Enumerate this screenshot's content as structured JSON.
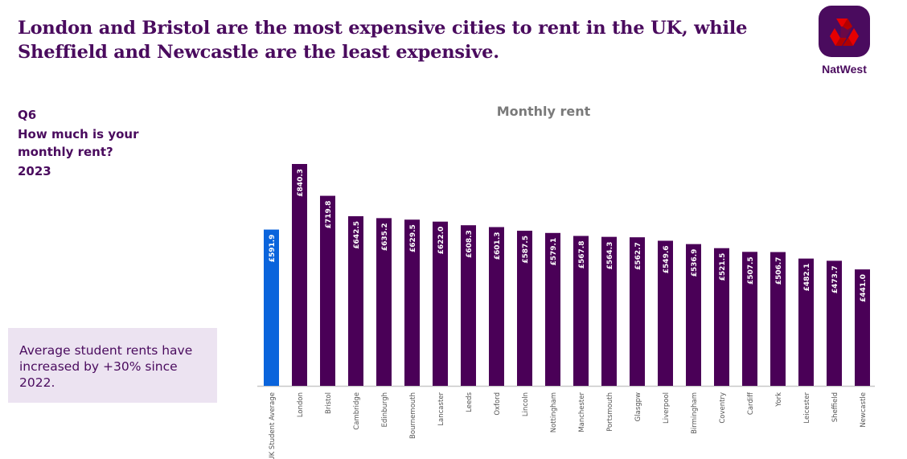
{
  "headline": {
    "line1": "London and Bristol are the most expensive cities to rent in the UK, while",
    "line2": "Sheffield and Newcastle are the least expensive."
  },
  "brand": {
    "name": "NatWest",
    "logo_bg": "#4a0b5e",
    "logo_fg": "#e60000"
  },
  "question": {
    "code": "Q6",
    "text": "How much is your monthly rent?",
    "year": "2023"
  },
  "callout": {
    "text": "Average student rents have increased by +30% since 2022."
  },
  "colors": {
    "bar": "#4a0057",
    "highlight": "#0a64dc",
    "axis": "#c8c8c8",
    "text": "#4a0b5e",
    "tick_label": "#555555"
  },
  "chart_data": {
    "type": "bar",
    "title": "Monthly rent",
    "xlabel": "",
    "ylabel": "",
    "ylim": [
      0,
      850
    ],
    "grid": false,
    "legend": "none",
    "label_prefix": "£",
    "categories": [
      "UK Student Average",
      "London",
      "Bristol",
      "Cambridge",
      "Edinburgh",
      "Bournemouth",
      "Lancaster",
      "Leeds",
      "Oxford",
      "Lincoln",
      "Nottingham",
      "Manchester",
      "Portsmouth",
      "Glasgpw",
      "Liverpool",
      "Birmingham",
      "Coventry",
      "Cardiff",
      "York",
      "Leicester",
      "Sheffield",
      "Newcastle"
    ],
    "values": [
      591.9,
      840.3,
      719.8,
      642.5,
      635.2,
      629.5,
      622.0,
      608.3,
      601.3,
      587.5,
      579.1,
      567.8,
      564.3,
      562.7,
      549.6,
      536.9,
      521.5,
      507.5,
      506.7,
      482.1,
      473.7,
      441.0
    ],
    "data_labels": [
      "£591.9",
      "£840.3",
      "£719.8",
      "£642.5",
      "£635.2",
      "£629.5",
      "£622.0",
      "£608.3",
      "£601.3",
      "£587.5",
      "£579.1",
      "£567.8",
      "£564.3",
      "£562.7",
      "£549.6",
      "£536.9",
      "£521.5",
      "£507.5",
      "£506.7",
      "£482.1",
      "£473.7",
      "£441.0"
    ],
    "highlighted": [
      "UK Student Average"
    ]
  }
}
